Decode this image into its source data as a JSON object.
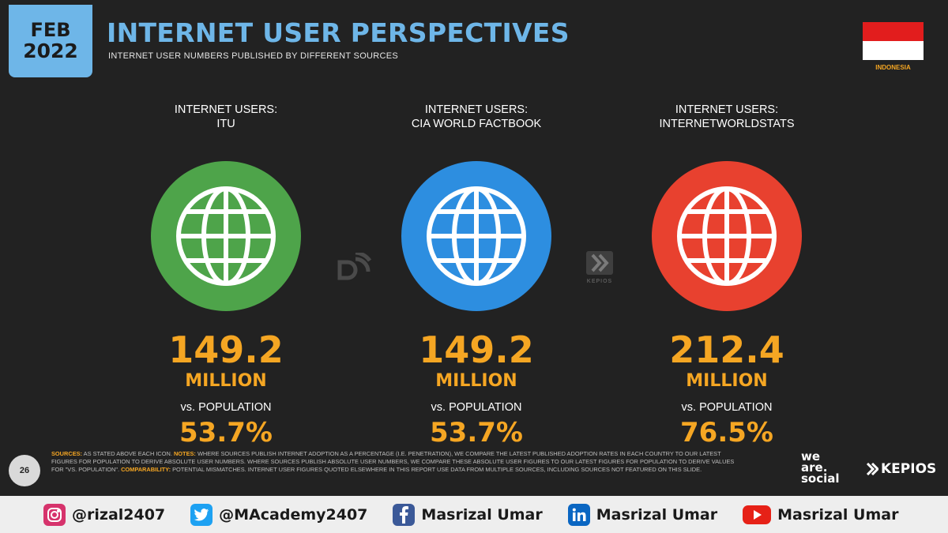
{
  "header": {
    "month": "FEB",
    "year": "2022",
    "title": "INTERNET USER PERSPECTIVES",
    "subtitle": "INTERNET USER NUMBERS PUBLISHED BY DIFFERENT SOURCES",
    "country": "INDONESIA"
  },
  "columns": [
    {
      "head1": "INTERNET USERS:",
      "head2": "ITU",
      "value": "149.2",
      "unit": "MILLION",
      "vs": "vs. POPULATION",
      "pct": "53.7%",
      "globe_color": "#4ea44a",
      "icon": "globe-icon"
    },
    {
      "head1": "INTERNET USERS:",
      "head2": "CIA WORLD FACTBOOK",
      "value": "149.2",
      "unit": "MILLION",
      "vs": "vs. POPULATION",
      "pct": "53.7%",
      "globe_color": "#2d8ee0",
      "icon": "globe-icon"
    },
    {
      "head1": "INTERNET USERS:",
      "head2": "INTERNETWORLDSTATS",
      "value": "212.4",
      "unit": "MILLION",
      "vs": "vs. POPULATION",
      "pct": "76.5%",
      "globe_color": "#e8412f",
      "icon": "globe-icon"
    }
  ],
  "footer": {
    "page_number": "26",
    "sources_key": "SOURCES:",
    "sources_text": " AS STATED ABOVE EACH ICON. ",
    "notes_key": "NOTES:",
    "notes_text": " WHERE SOURCES PUBLISH INTERNET ADOPTION AS A PERCENTAGE (I.E. PENETRATION), WE COMPARE THE LATEST PUBLISHED ADOPTION RATES IN EACH COUNTRY TO OUR LATEST FIGURES FOR POPULATION TO DERIVE ABSOLUTE USER NUMBERS. WHERE SOURCES PUBLISH ABSOLUTE USER NUMBERS, WE COMPARE THESE ABSOLUTE USER FIGURES TO OUR LATEST FIGURES FOR POPULATION TO DERIVE VALUES FOR \"vs. POPULATION\". ",
    "comparability_key": "COMPARABILITY:",
    "comparability_text": " POTENTIAL MISMATCHES. INTERNET USER FIGURES QUOTED ELSEWHERE IN THIS REPORT USE DATA FROM MULTIPLE SOURCES, INCLUDING SOURCES NOT FEATURED ON THIS SLIDE.",
    "was_line1": "we",
    "was_line2": "are.",
    "was_line3": "social",
    "kepios": "KEPIOS",
    "watermark_kepios": "KEPIOS"
  },
  "social": [
    {
      "icon": "instagram-icon",
      "color": "#d6336c",
      "text": "@rizal2407"
    },
    {
      "icon": "twitter-icon",
      "color": "#1da1f2",
      "text": "@MAcademy2407"
    },
    {
      "icon": "facebook-icon",
      "color": "#3b5998",
      "text": "Masrizal Umar"
    },
    {
      "icon": "linkedin-icon",
      "color": "#0a66c2",
      "text": "Masrizal Umar"
    },
    {
      "icon": "youtube-icon",
      "color": "#e62117",
      "text": "Masrizal Umar"
    }
  ]
}
